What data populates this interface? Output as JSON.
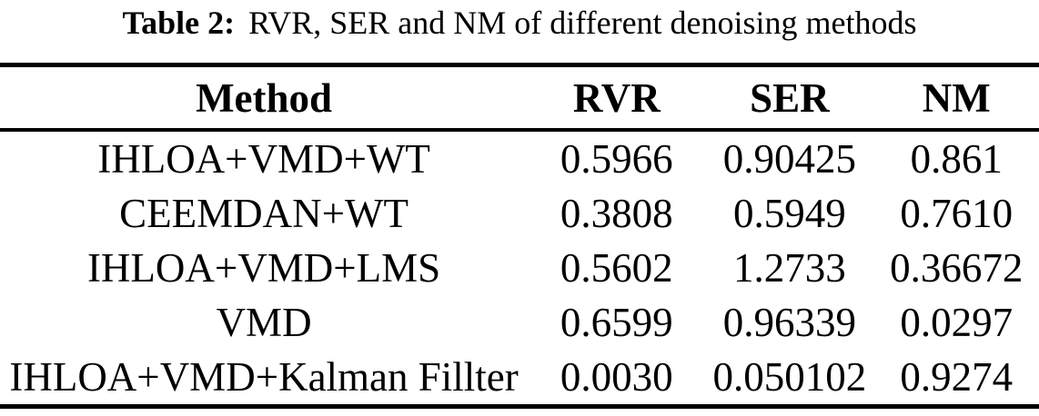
{
  "caption": {
    "label": "Table 2:",
    "text": "RVR, SER and NM of different denoising methods"
  },
  "table": {
    "columns": [
      "Method",
      "RVR",
      "SER",
      "NM"
    ],
    "rows": [
      [
        "IHLOA+VMD+WT",
        "0.5966",
        "0.90425",
        "0.861"
      ],
      [
        "CEEMDAN+WT",
        "0.3808",
        "0.5949",
        "0.7610"
      ],
      [
        "IHLOA+VMD+LMS",
        "0.5602",
        "1.2733",
        "0.36672"
      ],
      [
        "VMD",
        "0.6599",
        "0.96339",
        "0.0297"
      ],
      [
        "IHLOA+VMD+Kalman Fillter",
        "0.0030",
        "0.050102",
        "0.9274"
      ]
    ]
  },
  "colors": {
    "text": "#000000",
    "background": "#ffffff",
    "rule": "#000000"
  }
}
